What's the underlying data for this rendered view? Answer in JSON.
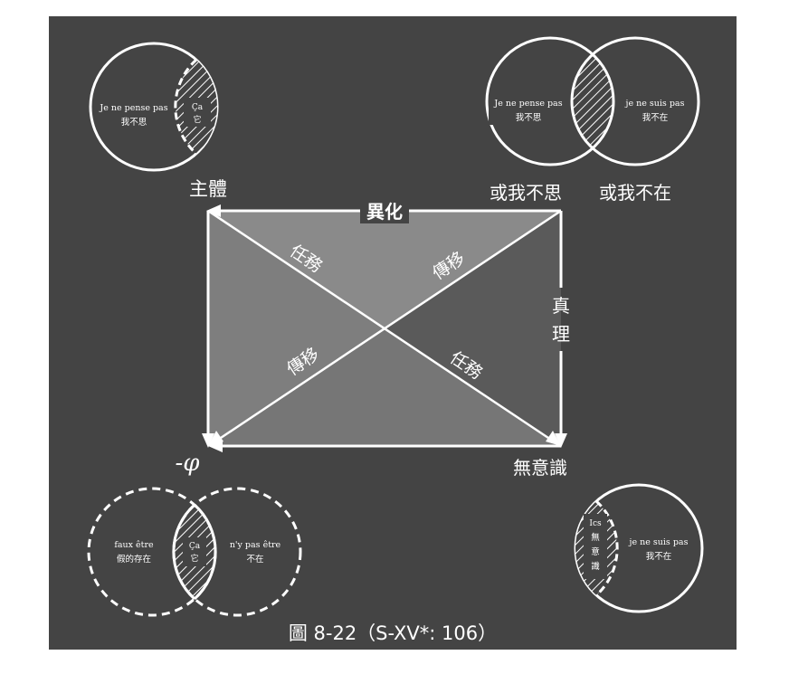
{
  "colors": {
    "panel": "#444444",
    "line": "#ffffff",
    "triangle_light": "#8a8a8a",
    "triangle_mid": "#767676",
    "triangle_dark": "#5c5c5c"
  },
  "diagram": {
    "corners": {
      "top_left": "主體",
      "bottom_left": "-φ",
      "bottom_right": "無意識",
      "top_right_left": "或我不思",
      "top_right_right": "或我不在"
    },
    "edges": {
      "top": "異化",
      "right_1": "真",
      "right_2": "理"
    },
    "diagonals": {
      "upper_left": "任務",
      "upper_right": "傳移",
      "lower_left": "傳移",
      "lower_right": "任務"
    }
  },
  "venn_top_left": {
    "left_fr": "Je ne pense pas",
    "left_zh": "我不思",
    "center_fr": "Ça",
    "center_zh": "它"
  },
  "venn_top_right": {
    "left_fr": "Je ne pense pas",
    "left_zh": "我不思",
    "right_fr": "je ne suis pas",
    "right_zh": "我不在"
  },
  "venn_bottom_left": {
    "left_fr": "faux être",
    "left_zh": "假的存在",
    "center_fr": "Ça",
    "center_zh": "它",
    "right_fr": "n'y pas être",
    "right_zh": "不在"
  },
  "venn_bottom_right": {
    "center_1": "Ics",
    "center_2": "無",
    "center_3": "意",
    "center_4": "識",
    "right_fr": "je ne suis pas",
    "right_zh": "我不在"
  },
  "caption": "圖 8-22（S-XV*: 106）"
}
